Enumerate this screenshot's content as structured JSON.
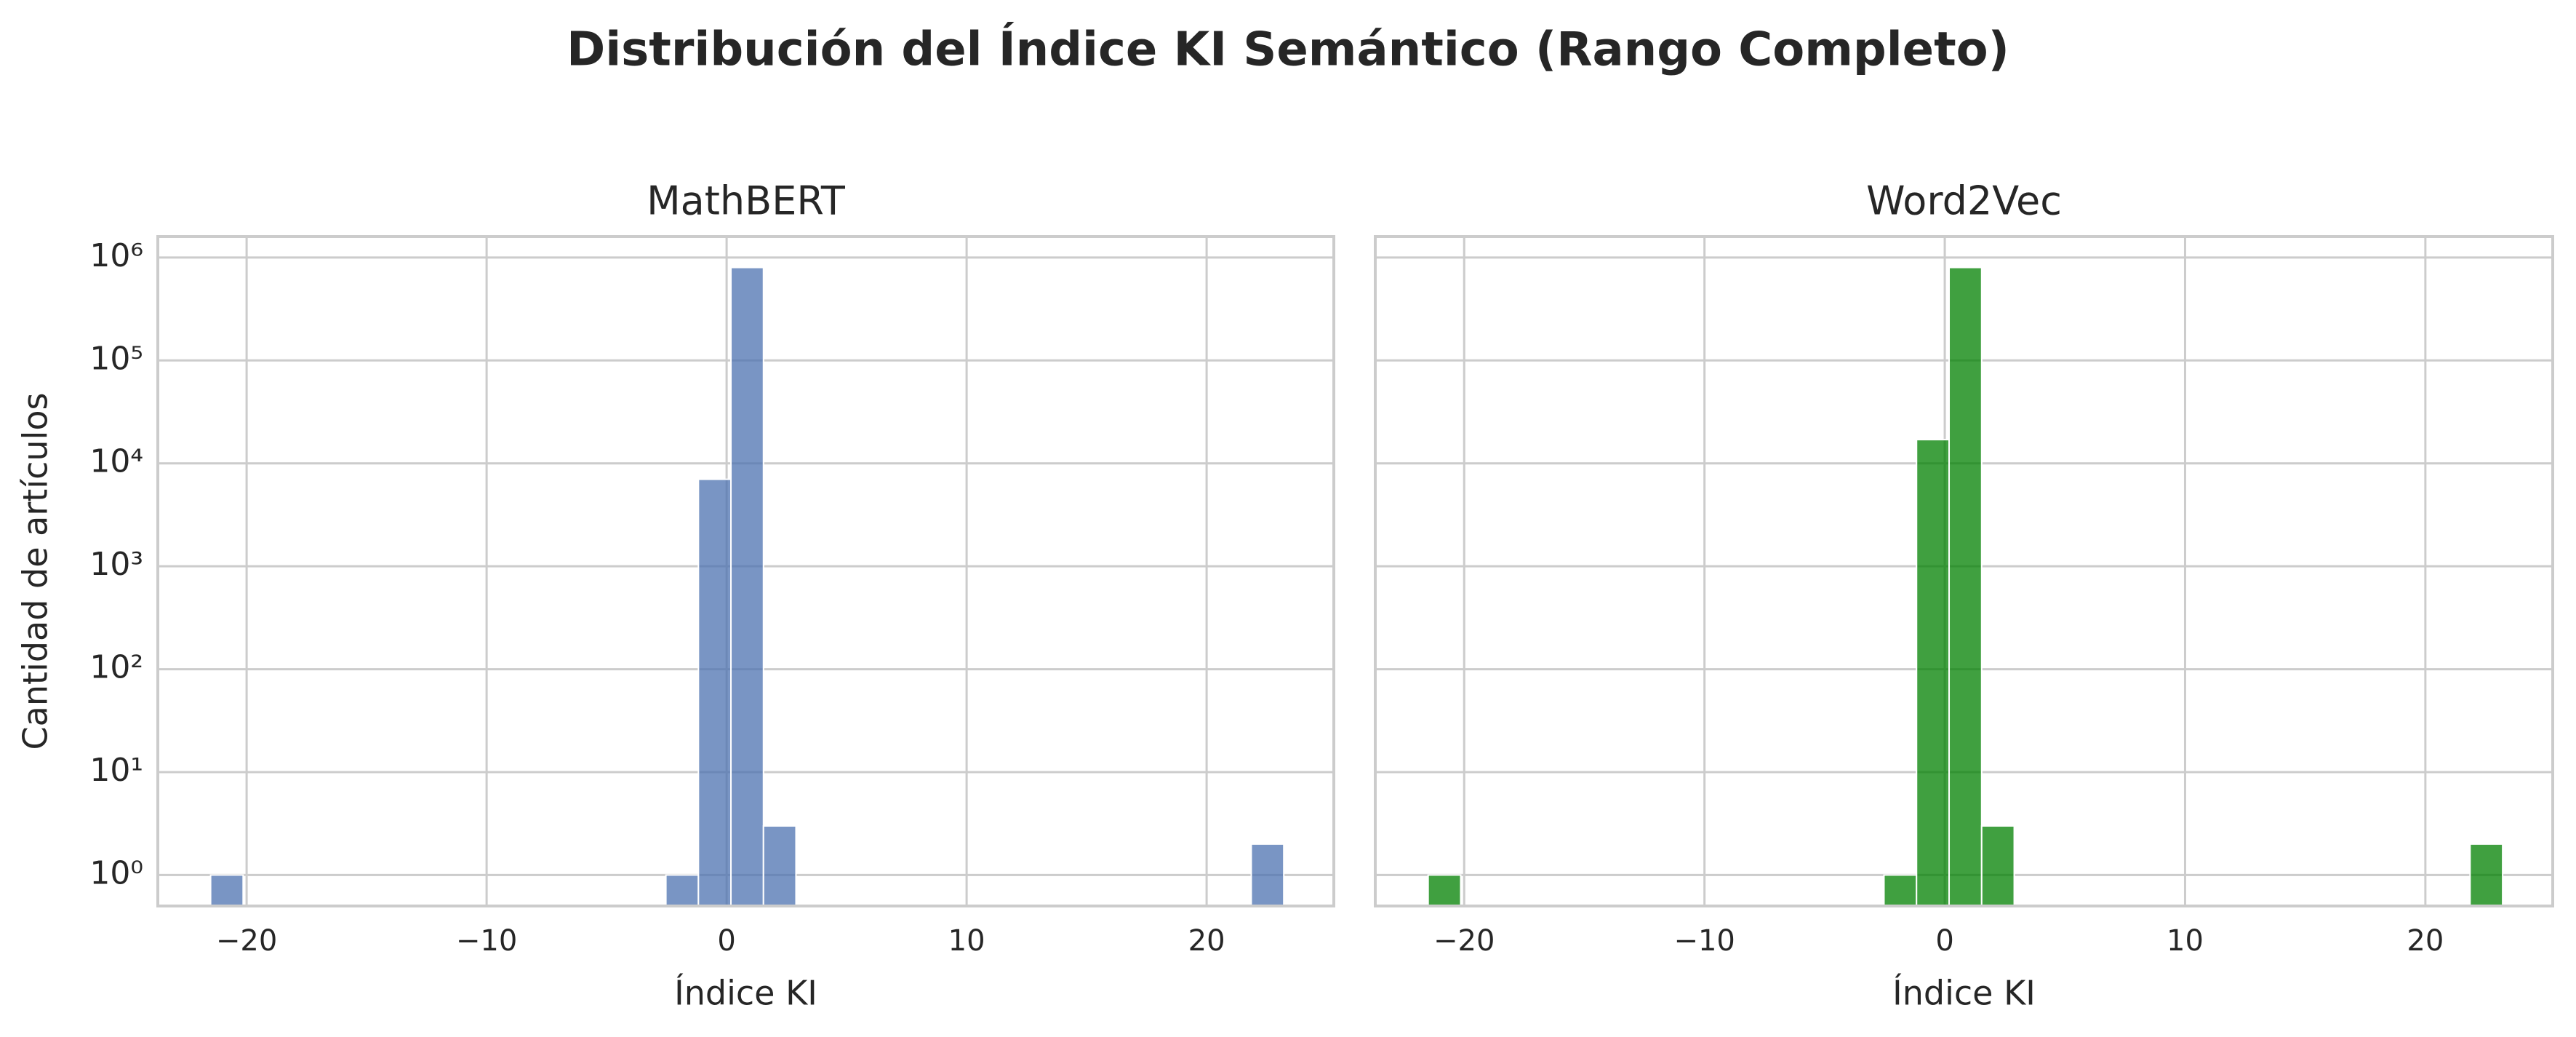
{
  "title": "Distribución del Índice KI Semántico (Rango Completo)",
  "chart_data": [
    {
      "type": "histogram",
      "title": "MathBERT",
      "xlabel": "Índice KI",
      "ylabel": "Cantidad de artículos",
      "bins": [
        -21.5,
        -20.145,
        -18.79,
        -17.435,
        -16.08,
        -14.725,
        -13.37,
        -12.015,
        -10.66,
        -9.305,
        -7.95,
        -6.595,
        -5.24,
        -3.885,
        -2.53,
        -1.175,
        0.18,
        1.535,
        2.89,
        4.245,
        5.6,
        6.955,
        8.31,
        9.665,
        11.02,
        12.375,
        13.73,
        15.085,
        16.44,
        17.795,
        19.15,
        20.505,
        21.86,
        23.215
      ],
      "values": [
        1,
        0,
        0,
        0,
        0,
        0,
        0,
        0,
        0,
        0,
        0,
        0,
        0,
        0,
        1,
        7000,
        800000,
        3,
        0,
        0,
        0,
        0,
        0,
        0,
        0,
        0,
        0,
        0,
        0,
        0,
        0,
        0,
        2
      ],
      "color": "#4c72b0",
      "log_y": true,
      "grid": true,
      "xlim": [
        -23.7,
        25.3
      ],
      "ylim": [
        0.5,
        1600000
      ],
      "xticks": [
        {
          "value": -20,
          "label": "−20"
        },
        {
          "value": -10,
          "label": "−10"
        },
        0,
        10,
        20
      ],
      "yticks": [
        {
          "value": 1,
          "label": "10⁰"
        },
        {
          "value": 10,
          "label": "10¹"
        },
        {
          "value": 100,
          "label": "10²"
        },
        {
          "value": 1000,
          "label": "10³"
        },
        {
          "value": 10000,
          "label": "10⁴"
        },
        {
          "value": 100000,
          "label": "10⁵"
        },
        {
          "value": 1000000,
          "label": "10⁶"
        }
      ]
    },
    {
      "type": "histogram",
      "title": "Word2Vec",
      "xlabel": "Índice KI",
      "bins": [
        -21.5,
        -20.145,
        -18.79,
        -17.435,
        -16.08,
        -14.725,
        -13.37,
        -12.015,
        -10.66,
        -9.305,
        -7.95,
        -6.595,
        -5.24,
        -3.885,
        -2.53,
        -1.175,
        0.18,
        1.535,
        2.89,
        4.245,
        5.6,
        6.955,
        8.31,
        9.665,
        11.02,
        12.375,
        13.73,
        15.085,
        16.44,
        17.795,
        19.15,
        20.505,
        21.86,
        23.215
      ],
      "values": [
        1,
        0,
        0,
        0,
        0,
        0,
        0,
        0,
        0,
        0,
        0,
        0,
        0,
        0,
        1,
        17000,
        800000,
        3,
        0,
        0,
        0,
        0,
        0,
        0,
        0,
        0,
        0,
        0,
        0,
        0,
        0,
        0,
        2
      ],
      "color": "#008000",
      "log_y": true,
      "grid": true,
      "xlim": [
        -23.7,
        25.3
      ],
      "ylim": [
        0.5,
        1600000
      ],
      "xticks": [
        {
          "value": -20,
          "label": "−20"
        },
        {
          "value": -10,
          "label": "−10"
        },
        0,
        10,
        20
      ],
      "yticks": [
        1,
        10,
        100,
        1000,
        10000,
        100000,
        1000000
      ]
    }
  ]
}
